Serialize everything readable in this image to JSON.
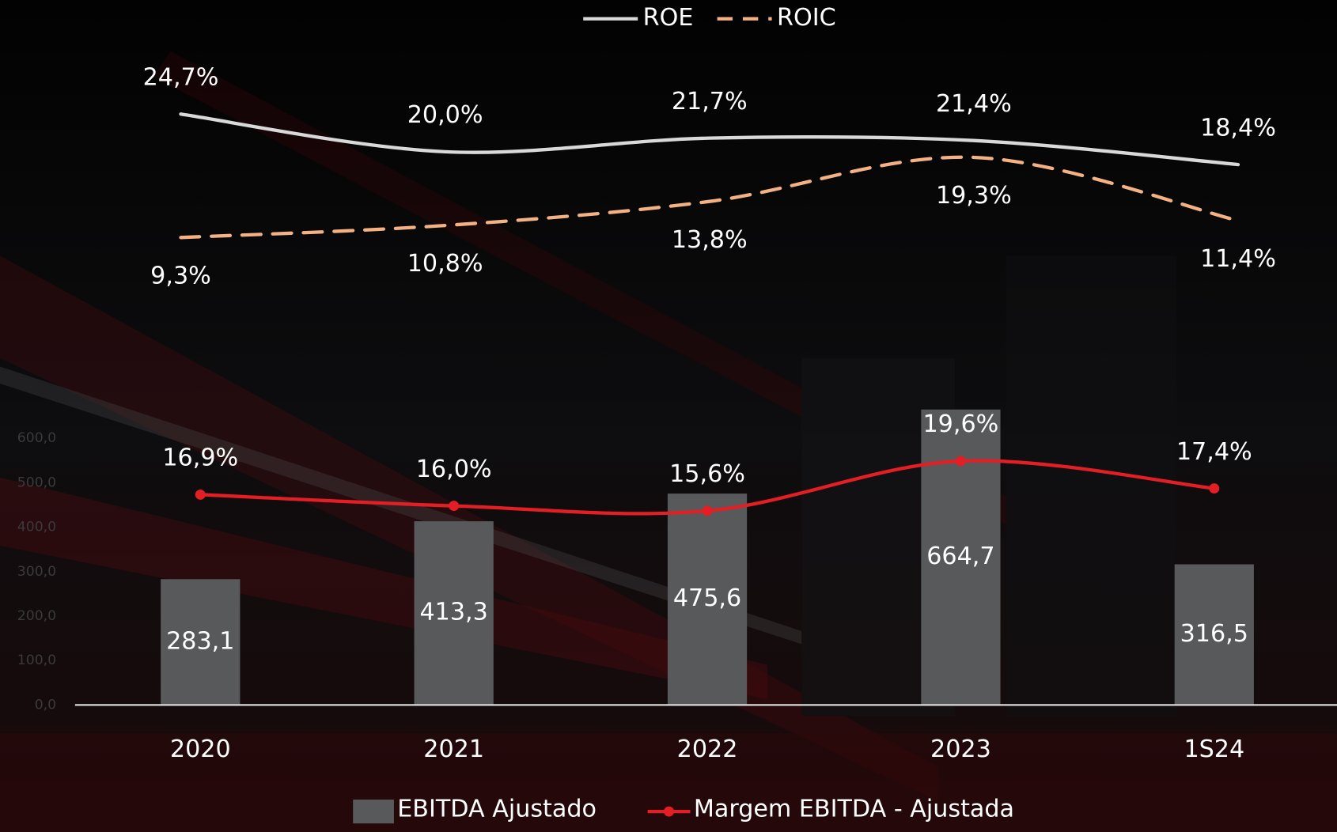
{
  "chart_data": [
    {
      "type": "line",
      "legend": "top",
      "ylim": [
        0,
        30
      ],
      "series": [
        {
          "name": "ROE",
          "color": "#d9d9d9",
          "style": "solid",
          "values": [
            24.7,
            20.0,
            21.7,
            21.4,
            18.4
          ],
          "value_labels": [
            "24,7%",
            "20,0%",
            "21,7%",
            "21,4%",
            "18,4%"
          ]
        },
        {
          "name": "ROIC",
          "color": "#f4b183",
          "style": "dashed",
          "values": [
            9.3,
            10.8,
            13.8,
            19.3,
            11.4
          ],
          "value_labels": [
            "9,3%",
            "10,8%",
            "13,8%",
            "19,3%",
            "11,4%"
          ]
        }
      ]
    },
    {
      "type": "bar",
      "legend": "bottom",
      "categories": [
        "2020",
        "2021",
        "2022",
        "2023",
        "1S24"
      ],
      "ylim": [
        0,
        700
      ],
      "yticks": [
        {
          "value": 0,
          "label": "0,0"
        },
        {
          "value": 100,
          "label": "100,0"
        },
        {
          "value": 200,
          "label": "200,0"
        },
        {
          "value": 300,
          "label": "300,0"
        },
        {
          "value": 400,
          "label": "400,0"
        },
        {
          "value": 500,
          "label": "500,0"
        },
        {
          "value": 600,
          "label": "600,0"
        }
      ],
      "y2lim": [
        0,
        25
      ],
      "series": [
        {
          "name": "EBITDA Ajustado",
          "type": "bar",
          "color": "#58595b",
          "values": [
            283.1,
            413.3,
            475.6,
            664.7,
            316.5
          ],
          "value_labels": [
            "283,1",
            "413,3",
            "475,6",
            "664,7",
            "316,5"
          ]
        },
        {
          "name": "Margem EBITDA - Ajustada",
          "type": "line",
          "axis": "y2",
          "color": "#e31e24",
          "values": [
            16.9,
            16.0,
            15.6,
            19.6,
            17.4
          ],
          "value_labels": [
            "16,9%",
            "16,0%",
            "15,6%",
            "19,6%",
            "17,4%"
          ]
        }
      ]
    }
  ]
}
